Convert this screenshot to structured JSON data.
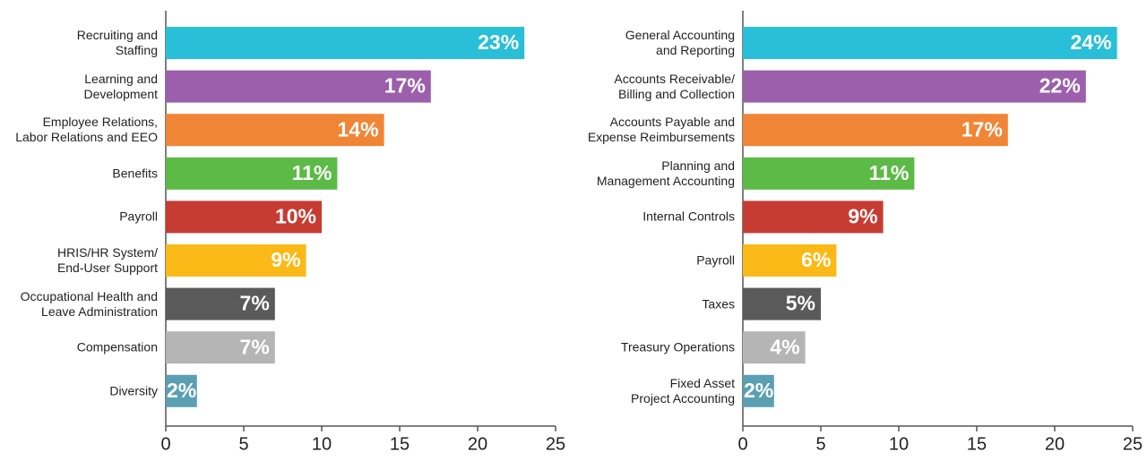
{
  "chart_data": [
    {
      "type": "bar",
      "categories": [
        "Recruiting and\nStaffing",
        "Learning and\nDevelopment",
        "Employee Relations,\nLabor Relations and EEO",
        "Benefits",
        "Payroll",
        "HRIS/HR System/\nEnd-User Support",
        "Occupational Health and\nLeave Administration",
        "Compensation",
        "Diversity"
      ],
      "values": [
        23,
        17,
        14,
        11,
        10,
        9,
        7,
        7,
        2
      ],
      "value_labels": [
        "23%",
        "17%",
        "14%",
        "11%",
        "10%",
        "9%",
        "7%",
        "7%",
        "2%"
      ],
      "colors": [
        "#29bfd8",
        "#9b5fac",
        "#f08536",
        "#5cbb46",
        "#c63c32",
        "#fbb917",
        "#5a5a5a",
        "#b5b5b5",
        "#5b9fb3"
      ],
      "xlim": [
        0,
        25
      ],
      "xticks": [
        0,
        5,
        10,
        15,
        20,
        25
      ]
    },
    {
      "type": "bar",
      "categories": [
        "General Accounting\nand Reporting",
        "Accounts Receivable/\nBilling and Collection",
        "Accounts Payable and\nExpense Reimbursements",
        "Planning and\nManagement Accounting",
        "Internal Controls",
        "Payroll",
        "Taxes",
        "Treasury Operations",
        "Fixed Asset\nProject Accounting"
      ],
      "values": [
        24,
        22,
        17,
        11,
        9,
        6,
        5,
        4,
        2
      ],
      "value_labels": [
        "24%",
        "22%",
        "17%",
        "11%",
        "9%",
        "6%",
        "5%",
        "4%",
        "2%"
      ],
      "colors": [
        "#29bfd8",
        "#9b5fac",
        "#f08536",
        "#5cbb46",
        "#c63c32",
        "#fbb917",
        "#5a5a5a",
        "#b5b5b5",
        "#5b9fb3"
      ],
      "xlim": [
        0,
        25
      ],
      "xticks": [
        0,
        5,
        10,
        15,
        20,
        25
      ]
    }
  ]
}
